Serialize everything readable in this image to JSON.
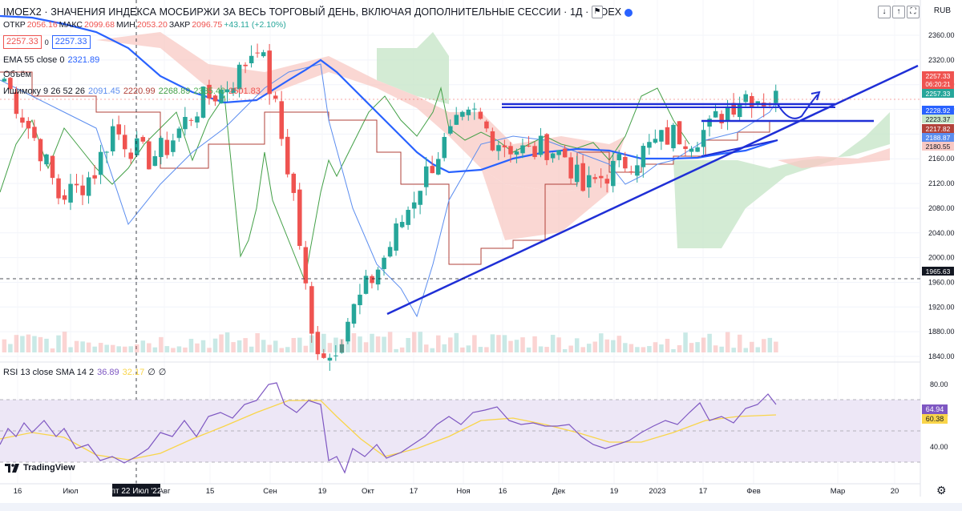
{
  "header": {
    "title": "IMOEX2 · ЗНАЧЕНИЯ ИНДЕКСА МОСБИРЖИ ЗА ВЕСЬ ТОРГОВЫЙ ДЕНЬ, ВКЛЮЧАЯ ДОПОЛНИТЕЛЬНЫЕ СЕССИИ · 1Д · MOEX",
    "currency": "RUB",
    "ohlc": {
      "open_label": "ОТКР",
      "open": "2056.16",
      "high_label": "МАКС",
      "high": "2099.68",
      "low_label": "МИН",
      "low": "2053.20",
      "close_label": "ЗАКР",
      "close": "2096.75",
      "change": "+43.11 (+2.10%)"
    },
    "buy": "2257.33",
    "sell": "2257.33"
  },
  "indicators": {
    "ema_label": "EMA 55 close 0",
    "ema_value": "2321.89",
    "volume_label": "Объём",
    "ichimoku_label": "Ишимоку 9 26 52 26",
    "ichimoku_values": [
      "2091.45",
      "2220.99",
      "2268.89",
      "2335.40",
      "2501.83"
    ],
    "rsi_label": "RSI 13 close SMA 14 2",
    "rsi_values": [
      "36.89",
      "32.17",
      "∅",
      "∅"
    ]
  },
  "crosshair_date": "пт 22 Июл '22",
  "branding": "TradingView",
  "colors": {
    "up": "#26a69a",
    "down": "#ef5350",
    "ema": "#2962ff",
    "tenkan": "#5b8def",
    "kijun": "#b2423a",
    "chikou": "#43a047",
    "cloud_up": "#c8e6c9",
    "cloud_down": "#f8c9c4",
    "rsi": "#7e57c2",
    "rsi_ma": "#f9d54a",
    "rsi_band": "#ede7f6",
    "trend": "#1f2fd6"
  },
  "chart_data": [
    {
      "type": "candlestick",
      "series_name": "IMOEX2",
      "y_ticks": [
        2360,
        2320,
        2280,
        2240,
        2200,
        2160,
        2120,
        2080,
        2040,
        2000,
        1960,
        1920,
        1880,
        1840
      ],
      "ylim": [
        1830,
        2380
      ],
      "x_labels": [
        "16",
        "Июл",
        "Авг",
        "15",
        "Сен",
        "19",
        "Окт",
        "17",
        "Ноя",
        "16",
        "Дек",
        "19",
        "2023",
        "17",
        "Фев",
        "Мар",
        "20"
      ],
      "axis_badges": [
        {
          "value": "2257.33",
          "note": "06:20:21",
          "color": "#ef5350"
        },
        {
          "value": "2257.33",
          "color": "#26a69a"
        },
        {
          "value": "2228.92",
          "color": "#2962ff"
        },
        {
          "value": "2223.37",
          "color": "#c8e6c9"
        },
        {
          "value": "2217.82",
          "color": "#b2423a"
        },
        {
          "value": "2188.87",
          "color": "#5b8def"
        },
        {
          "value": "2180.55",
          "color": "#f8c9c4"
        },
        {
          "value": "1965.63",
          "color": "#131722"
        }
      ],
      "ema55": [
        2330,
        2300,
        2275,
        2255,
        2245,
        2243,
        2250,
        2270,
        2300,
        2312,
        2290,
        2235,
        2195,
        2165,
        2138,
        2142,
        2152,
        2158,
        2158,
        2152,
        2148,
        2158,
        2168,
        2175,
        2188
      ],
      "candles_close_approx": [
        2290,
        2230,
        2175,
        2100,
        2110,
        2140,
        2210,
        2180,
        2160,
        2180,
        2220,
        2255,
        2270,
        2300,
        2350,
        2240,
        2100,
        1870,
        1840,
        1900,
        1950,
        2000,
        2060,
        2120,
        2170,
        2210,
        2230,
        2195,
        2180,
        2170,
        2180,
        2165,
        2110,
        2130,
        2150,
        2165,
        2185,
        2200,
        2195,
        2210,
        2245,
        2265,
        2257
      ]
    },
    {
      "type": "line",
      "series_name": "RSI 13 close SMA 14 2",
      "y_ticks": [
        80,
        60,
        40
      ],
      "ylim": [
        20,
        90
      ],
      "bands": [
        70,
        50,
        30
      ],
      "current": {
        "rsi": "64.94",
        "ma": "60.38"
      }
    }
  ]
}
